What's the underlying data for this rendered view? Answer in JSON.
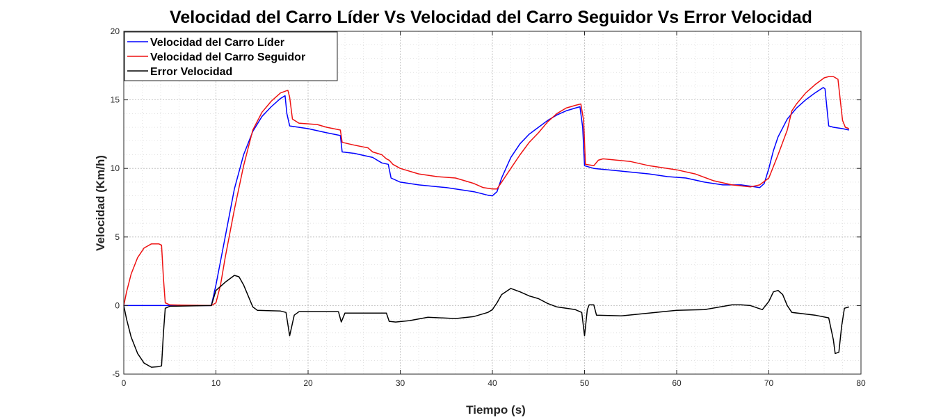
{
  "chart_data": {
    "type": "line",
    "title": "Velocidad del Carro Líder Vs Velocidad del Carro Seguidor Vs Error Velocidad",
    "xlabel": "Tiempo (s)",
    "ylabel": "Velocidad (Km/h)",
    "xlim": [
      0,
      80
    ],
    "ylim": [
      -5,
      20
    ],
    "xticks": [
      0,
      10,
      20,
      30,
      40,
      50,
      60,
      70,
      80
    ],
    "yticks": [
      -5,
      0,
      5,
      10,
      15,
      20
    ],
    "grid": true,
    "minor_grid": true,
    "legend_position": "top-left",
    "series": [
      {
        "name": "Velocidad del Carro Líder",
        "color": "#0000ff",
        "points": [
          [
            0,
            0
          ],
          [
            9.5,
            0
          ],
          [
            10,
            1.5
          ],
          [
            11,
            5
          ],
          [
            12,
            8.5
          ],
          [
            13,
            11
          ],
          [
            14,
            12.7
          ],
          [
            15,
            13.8
          ],
          [
            16,
            14.5
          ],
          [
            17,
            15.1
          ],
          [
            17.5,
            15.3
          ],
          [
            17.7,
            14
          ],
          [
            18,
            13.1
          ],
          [
            20,
            12.9
          ],
          [
            22,
            12.6
          ],
          [
            23.5,
            12.4
          ],
          [
            23.7,
            11.2
          ],
          [
            25,
            11.1
          ],
          [
            27,
            10.8
          ],
          [
            28,
            10.4
          ],
          [
            28.7,
            10.3
          ],
          [
            29,
            9.3
          ],
          [
            30,
            9.0
          ],
          [
            32,
            8.8
          ],
          [
            35,
            8.6
          ],
          [
            38,
            8.3
          ],
          [
            39.5,
            8.05
          ],
          [
            40,
            8.0
          ],
          [
            40.5,
            8.3
          ],
          [
            41,
            9.3
          ],
          [
            42,
            10.8
          ],
          [
            43,
            11.8
          ],
          [
            44,
            12.5
          ],
          [
            45,
            13.0
          ],
          [
            46,
            13.5
          ],
          [
            47,
            13.9
          ],
          [
            48,
            14.2
          ],
          [
            49,
            14.4
          ],
          [
            49.5,
            14.5
          ],
          [
            49.8,
            13
          ],
          [
            50,
            10.2
          ],
          [
            51,
            10.0
          ],
          [
            54,
            9.8
          ],
          [
            57,
            9.6
          ],
          [
            59,
            9.4
          ],
          [
            61,
            9.3
          ],
          [
            63,
            9.0
          ],
          [
            65,
            8.8
          ],
          [
            67,
            8.8
          ],
          [
            68,
            8.7
          ],
          [
            69,
            8.6
          ],
          [
            69.5,
            8.9
          ],
          [
            70,
            10
          ],
          [
            70.5,
            11.3
          ],
          [
            71,
            12.3
          ],
          [
            72,
            13.6
          ],
          [
            73,
            14.4
          ],
          [
            74,
            15.0
          ],
          [
            75,
            15.5
          ],
          [
            75.9,
            15.9
          ],
          [
            76.1,
            15.8
          ],
          [
            76.5,
            13.1
          ],
          [
            77,
            13.0
          ],
          [
            78,
            12.9
          ],
          [
            78.7,
            12.8
          ]
        ]
      },
      {
        "name": "Velocidad del Carro Seguidor",
        "color": "#ee1111",
        "points": [
          [
            0,
            0
          ],
          [
            0.3,
            1.0
          ],
          [
            0.8,
            2.3
          ],
          [
            1.5,
            3.5
          ],
          [
            2.2,
            4.2
          ],
          [
            3,
            4.5
          ],
          [
            3.8,
            4.5
          ],
          [
            4.1,
            4.4
          ],
          [
            4.3,
            2.0
          ],
          [
            4.5,
            0.2
          ],
          [
            5,
            0.05
          ],
          [
            9.5,
            0
          ],
          [
            10,
            0.2
          ],
          [
            10.5,
            1.5
          ],
          [
            11,
            3.5
          ],
          [
            12,
            7
          ],
          [
            13,
            10.2
          ],
          [
            14,
            12.8
          ],
          [
            15,
            14.1
          ],
          [
            16,
            14.9
          ],
          [
            17,
            15.5
          ],
          [
            17.8,
            15.7
          ],
          [
            18,
            15.2
          ],
          [
            18.3,
            13.6
          ],
          [
            19,
            13.3
          ],
          [
            21,
            13.2
          ],
          [
            22,
            13.0
          ],
          [
            23.5,
            12.8
          ],
          [
            23.7,
            11.9
          ],
          [
            25,
            11.7
          ],
          [
            26.5,
            11.5
          ],
          [
            27,
            11.2
          ],
          [
            28,
            11.0
          ],
          [
            28.5,
            10.7
          ],
          [
            28.8,
            10.6
          ],
          [
            29.2,
            10.3
          ],
          [
            30,
            10.0
          ],
          [
            32,
            9.6
          ],
          [
            34,
            9.4
          ],
          [
            36,
            9.3
          ],
          [
            38,
            8.9
          ],
          [
            39,
            8.6
          ],
          [
            40,
            8.5
          ],
          [
            40.5,
            8.5
          ],
          [
            41,
            9.0
          ],
          [
            42,
            10.0
          ],
          [
            43,
            11.0
          ],
          [
            44,
            11.9
          ],
          [
            45,
            12.6
          ],
          [
            46,
            13.4
          ],
          [
            47,
            14.0
          ],
          [
            48,
            14.4
          ],
          [
            49,
            14.6
          ],
          [
            49.6,
            14.7
          ],
          [
            49.9,
            13.5
          ],
          [
            50.1,
            10.3
          ],
          [
            51,
            10.2
          ],
          [
            51.5,
            10.6
          ],
          [
            52,
            10.7
          ],
          [
            55,
            10.5
          ],
          [
            57,
            10.2
          ],
          [
            60,
            9.9
          ],
          [
            62,
            9.6
          ],
          [
            64,
            9.1
          ],
          [
            66,
            8.8
          ],
          [
            68,
            8.65
          ],
          [
            69,
            8.8
          ],
          [
            70,
            9.3
          ],
          [
            71,
            11
          ],
          [
            72,
            12.8
          ],
          [
            72.5,
            14.2
          ],
          [
            73,
            14.7
          ],
          [
            74,
            15.5
          ],
          [
            75,
            16.1
          ],
          [
            76,
            16.6
          ],
          [
            76.5,
            16.7
          ],
          [
            77,
            16.7
          ],
          [
            77.5,
            16.5
          ],
          [
            78,
            13.5
          ],
          [
            78.3,
            13.0
          ],
          [
            78.7,
            12.9
          ]
        ]
      },
      {
        "name": "Error Velocidad",
        "color": "#000000",
        "points": [
          [
            0,
            0
          ],
          [
            0.3,
            -1.0
          ],
          [
            0.8,
            -2.3
          ],
          [
            1.5,
            -3.5
          ],
          [
            2.2,
            -4.2
          ],
          [
            3,
            -4.5
          ],
          [
            3.8,
            -4.45
          ],
          [
            4.1,
            -4.4
          ],
          [
            4.3,
            -2.0
          ],
          [
            4.5,
            -0.2
          ],
          [
            5,
            -0.05
          ],
          [
            9.5,
            0
          ],
          [
            10,
            1.1
          ],
          [
            11,
            1.7
          ],
          [
            12,
            2.2
          ],
          [
            12.5,
            2.1
          ],
          [
            13,
            1.5
          ],
          [
            13.5,
            0.7
          ],
          [
            14,
            -0.1
          ],
          [
            14.5,
            -0.35
          ],
          [
            17,
            -0.4
          ],
          [
            17.6,
            -0.5
          ],
          [
            18,
            -2.2
          ],
          [
            18.5,
            -0.7
          ],
          [
            19,
            -0.45
          ],
          [
            23.3,
            -0.45
          ],
          [
            23.6,
            -1.2
          ],
          [
            24,
            -0.55
          ],
          [
            28.5,
            -0.55
          ],
          [
            28.8,
            -1.15
          ],
          [
            29.5,
            -1.2
          ],
          [
            31,
            -1.1
          ],
          [
            33,
            -0.85
          ],
          [
            36,
            -0.95
          ],
          [
            38,
            -0.8
          ],
          [
            39.5,
            -0.5
          ],
          [
            40,
            -0.3
          ],
          [
            40.5,
            0.2
          ],
          [
            41,
            0.8
          ],
          [
            42,
            1.25
          ],
          [
            43,
            1.0
          ],
          [
            44,
            0.7
          ],
          [
            45,
            0.5
          ],
          [
            46,
            0.15
          ],
          [
            47,
            -0.1
          ],
          [
            48,
            -0.2
          ],
          [
            49,
            -0.3
          ],
          [
            49.7,
            -0.5
          ],
          [
            50,
            -2.2
          ],
          [
            50.3,
            -0.3
          ],
          [
            50.5,
            0.05
          ],
          [
            51,
            0.05
          ],
          [
            51.3,
            -0.7
          ],
          [
            54,
            -0.75
          ],
          [
            57,
            -0.55
          ],
          [
            60,
            -0.35
          ],
          [
            63,
            -0.3
          ],
          [
            66,
            0.05
          ],
          [
            67,
            0.05
          ],
          [
            68,
            0.0
          ],
          [
            69.3,
            -0.3
          ],
          [
            70,
            0.3
          ],
          [
            70.5,
            1.0
          ],
          [
            71,
            1.1
          ],
          [
            71.5,
            0.8
          ],
          [
            72,
            0.0
          ],
          [
            72.5,
            -0.5
          ],
          [
            75,
            -0.7
          ],
          [
            76.5,
            -0.9
          ],
          [
            77,
            -2.5
          ],
          [
            77.2,
            -3.5
          ],
          [
            77.6,
            -3.4
          ],
          [
            77.9,
            -1.5
          ],
          [
            78.2,
            -0.2
          ],
          [
            78.7,
            -0.1
          ]
        ]
      }
    ]
  }
}
